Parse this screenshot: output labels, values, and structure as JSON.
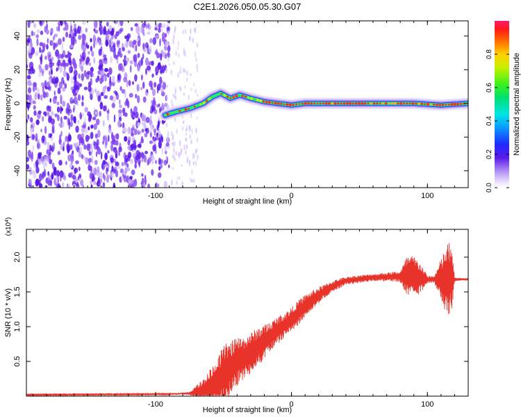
{
  "title": "C2E1.2026.050.05.30.G07",
  "colors": {
    "snr_line": "#e8332a",
    "frame": "#000000",
    "speckle_dark": "#5a18e6",
    "speckle_mid": "#8a4cf0",
    "speckle_light": "#d6c6fb"
  },
  "chart_data": [
    {
      "type": "heatmap",
      "name": "spectrogram",
      "xlabel": "Height of straight line (km)",
      "ylabel": "Frequency (Hz)",
      "xlim": [
        -195,
        130
      ],
      "ylim": [
        -50,
        49
      ],
      "x_ticks": [
        -100,
        0,
        100
      ],
      "x_tick_labels": [
        "-100",
        "0",
        "100"
      ],
      "y_ticks": [
        -40,
        -20,
        0,
        20,
        40
      ],
      "y_tick_labels": [
        "-40",
        "-20",
        "0",
        "20",
        "40"
      ],
      "noise_region_x": [
        -195,
        -92
      ],
      "signal_track": {
        "x": [
          -93,
          -85,
          -75,
          -65,
          -58,
          -52,
          -45,
          -38,
          -30,
          -20,
          -10,
          0,
          10,
          30,
          60,
          90,
          110,
          130
        ],
        "freq": [
          -7,
          -5,
          -3,
          0,
          4,
          6,
          3,
          5,
          3,
          1,
          0,
          -1,
          0,
          0,
          0,
          0,
          -1,
          0
        ]
      },
      "colorbar": {
        "label": "Normalized spectral amplitude",
        "range": [
          0,
          1
        ],
        "ticks": [
          0.0,
          0.2,
          0.4,
          0.6,
          0.8
        ],
        "tick_labels": [
          "0.0",
          "0.2",
          "0.4",
          "0.6",
          "0.8"
        ]
      }
    },
    {
      "type": "line",
      "name": "snr",
      "xlabel": "Height of straight line (km)",
      "ylabel": "SNR (10 * v/v)",
      "scale_label": "(x10",
      "scale_exponent": "4",
      "scale_close": ")",
      "xlim": [
        -195,
        130
      ],
      "ylim": [
        0,
        2.4
      ],
      "x_ticks": [
        -100,
        0,
        100
      ],
      "x_tick_labels": [
        "-100",
        "0",
        "100"
      ],
      "y_ticks": [
        0.5,
        1.0,
        1.5,
        2.0
      ],
      "y_tick_labels": [
        "0.5",
        "1.0",
        "1.5",
        "2.0"
      ],
      "envelope": {
        "x": [
          -195,
          -90,
          -75,
          -68,
          -62,
          -58,
          -55,
          -50,
          -45,
          -40,
          -35,
          -30,
          -25,
          -20,
          -15,
          -10,
          -5,
          0,
          5,
          10,
          20,
          30,
          40,
          60,
          80,
          85,
          90,
          95,
          100,
          105,
          110,
          113,
          116,
          118,
          120,
          125,
          130
        ],
        "base": [
          0.02,
          0.03,
          0.04,
          0.07,
          0.1,
          0.15,
          0.2,
          0.3,
          0.4,
          0.5,
          0.55,
          0.62,
          0.7,
          0.78,
          0.86,
          0.95,
          1.02,
          1.1,
          1.2,
          1.3,
          1.45,
          1.58,
          1.66,
          1.71,
          1.72,
          1.72,
          1.72,
          1.7,
          1.68,
          1.68,
          1.68,
          1.68,
          1.68,
          1.68,
          1.68,
          1.68,
          1.68
        ],
        "noise": [
          0.008,
          0.008,
          0.02,
          0.12,
          0.22,
          0.3,
          0.35,
          0.45,
          0.4,
          0.35,
          0.3,
          0.3,
          0.28,
          0.25,
          0.22,
          0.2,
          0.18,
          0.18,
          0.18,
          0.16,
          0.12,
          0.08,
          0.06,
          0.05,
          0.08,
          0.3,
          0.3,
          0.22,
          0.05,
          0.05,
          0.3,
          0.45,
          0.55,
          0.45,
          0.03,
          0.02,
          0.02
        ]
      }
    }
  ]
}
